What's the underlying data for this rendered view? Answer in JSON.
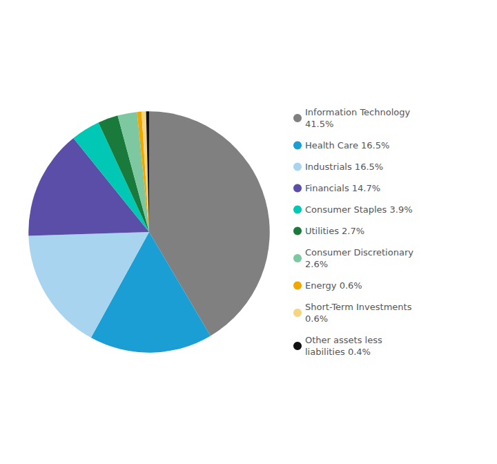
{
  "chart_data": {
    "type": "pie",
    "categories": [
      "Information Technology\n41.5%",
      "Health Care 16.5%",
      "Industrials 16.5%",
      "Financials 14.7%",
      "Consumer Staples 3.9%",
      "Utilities 2.7%",
      "Consumer Discretionary\n2.6%",
      "Energy 0.6%",
      "Short-Term Investments\n0.6%",
      "Other assets less\nliabilities 0.4%"
    ],
    "values": [
      41.5,
      16.5,
      16.5,
      14.7,
      3.9,
      2.7,
      2.6,
      0.6,
      0.6,
      0.4
    ],
    "colors": [
      "#808080",
      "#1a9ed4",
      "#a8d4f0",
      "#5b4ea8",
      "#00c8b4",
      "#1a7a3c",
      "#7dc8a0",
      "#f0a800",
      "#f5d580",
      "#111111"
    ],
    "legend": "right"
  }
}
